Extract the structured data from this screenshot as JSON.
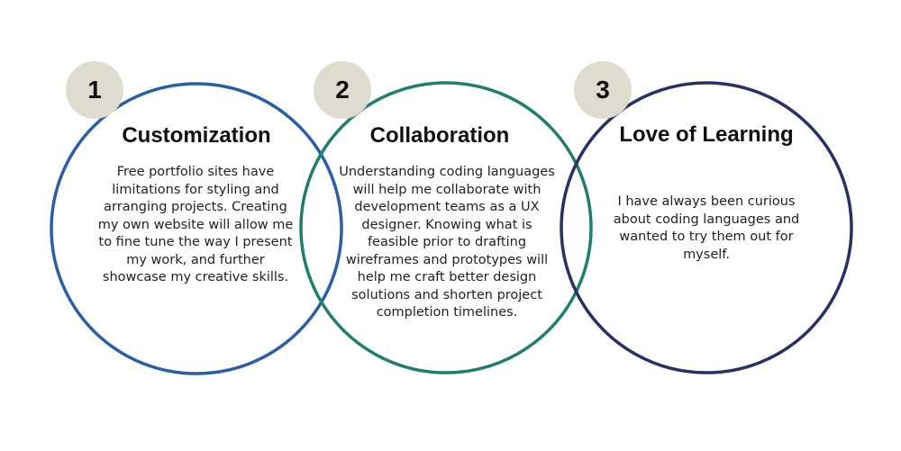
{
  "colors": {
    "ring_1": "#2a5ea8",
    "ring_2": "#1f7e6c",
    "ring_3": "#283066",
    "badge_fill": "#dedccf"
  },
  "items": [
    {
      "number": "1",
      "title": "Customization",
      "lines": [
        "Free portfolio sites have",
        "limitations for styling and",
        "arranging projects. Creating",
        "my own website will allow me",
        "to fine tune the way I present",
        "my work, and further",
        "showcase my creative skills."
      ]
    },
    {
      "number": "2",
      "title": "Collaboration",
      "lines": [
        "Understanding coding languages",
        "will help me collaborate with",
        "development teams as a UX",
        "designer. Knowing what is",
        "feasible prior to drafting",
        "wireframes and prototypes will",
        "help me craft better design",
        "solutions and shorten project",
        "completion timelines."
      ]
    },
    {
      "number": "3",
      "title": "Love of Learning",
      "lines": [
        "I have always been curious",
        "about coding languages and",
        "wanted to try them out for",
        "myself."
      ]
    }
  ]
}
